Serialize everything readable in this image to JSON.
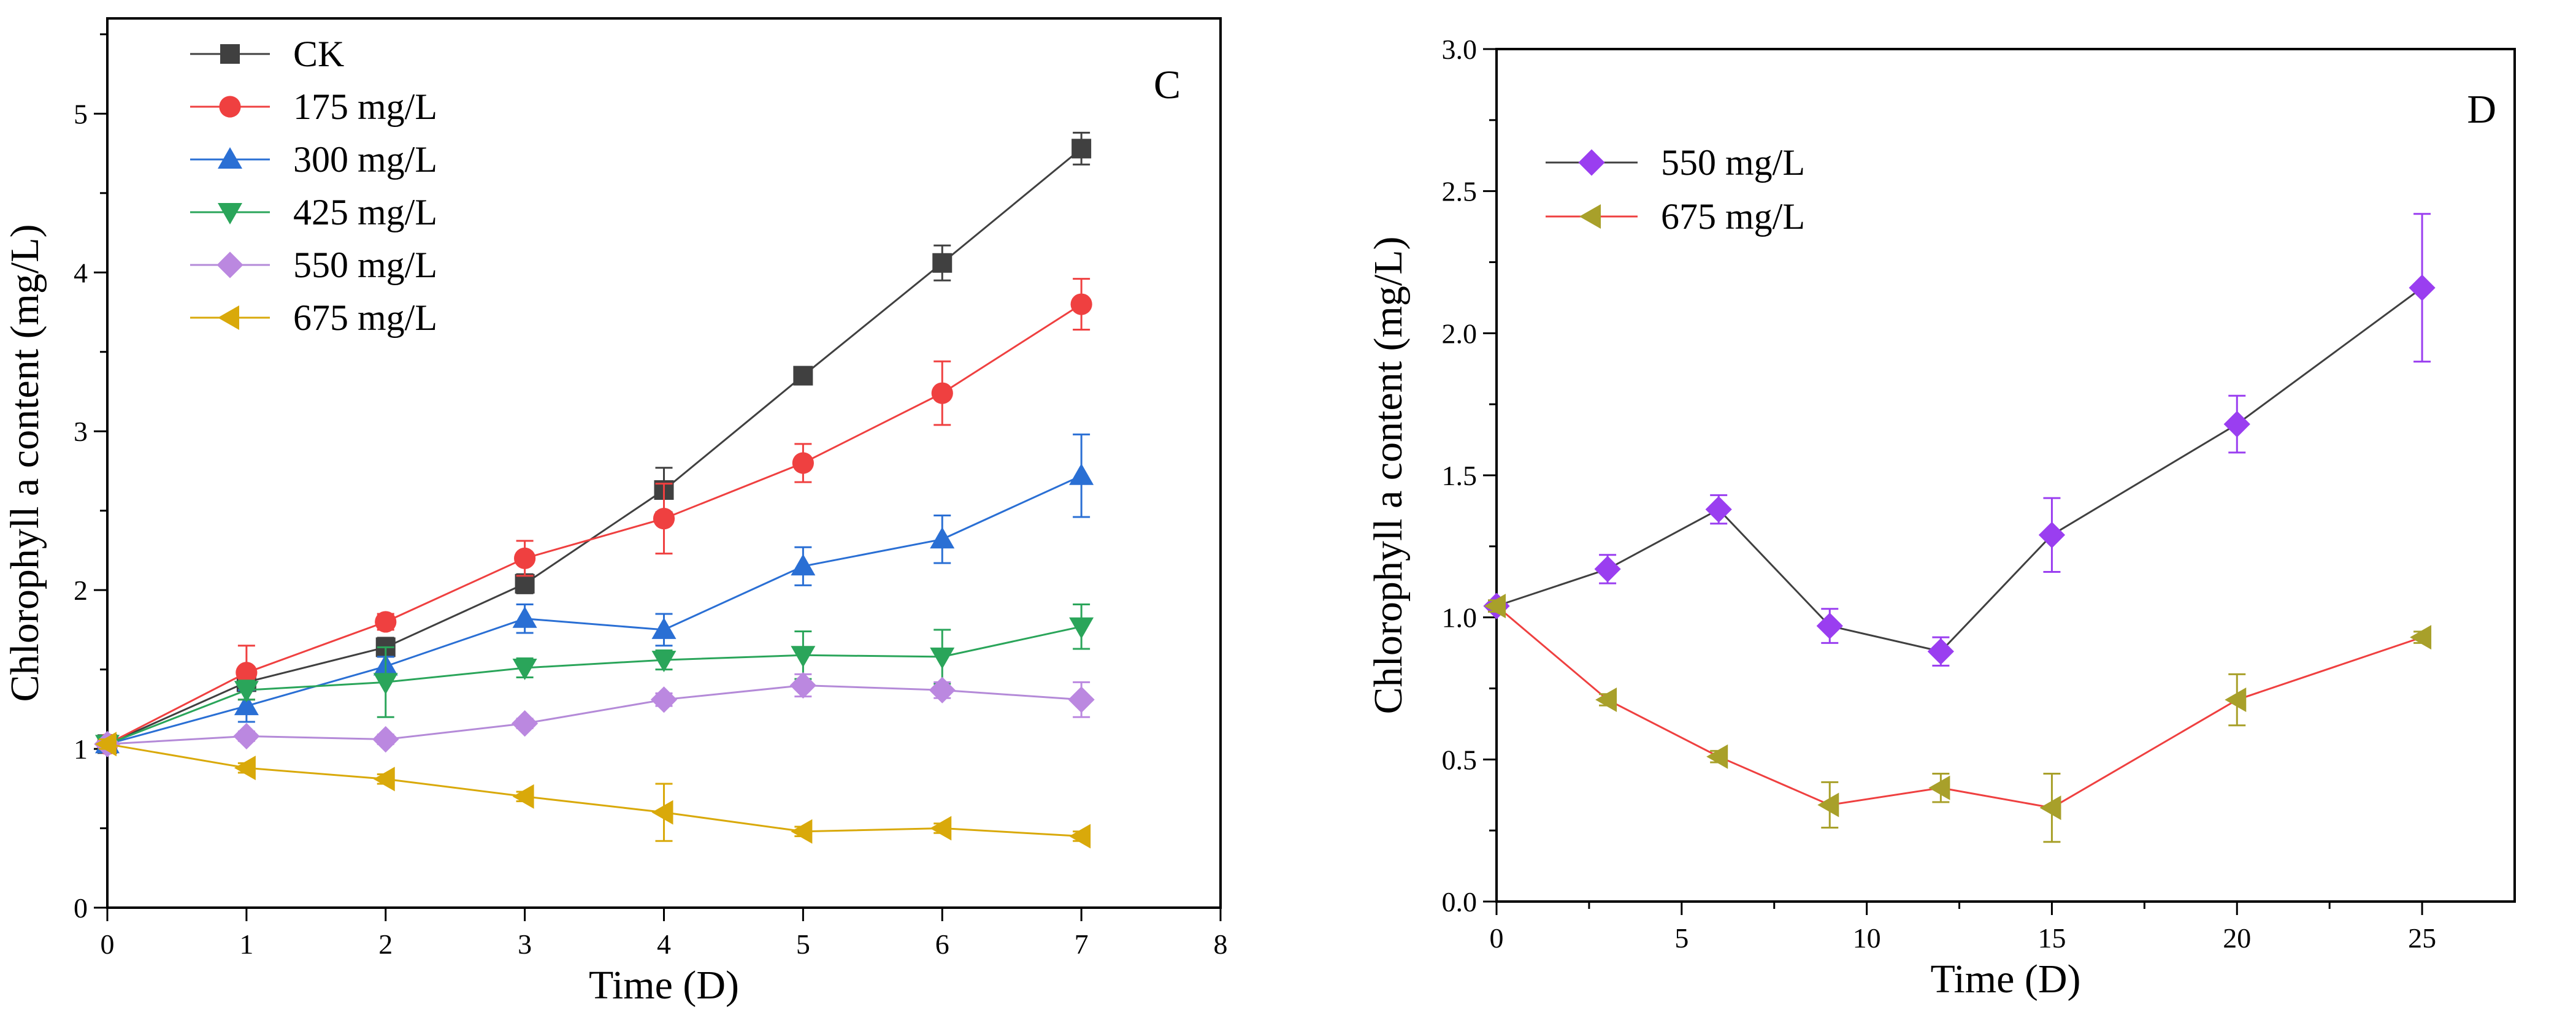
{
  "chart_data": [
    {
      "type": "line",
      "panel_label": "C",
      "xlabel": "Time (D)",
      "ylabel": "Chlorophyll a content (mg/L)",
      "xlim": [
        0,
        8
      ],
      "ylim": [
        0,
        5.6
      ],
      "xticks": [
        "0",
        "1",
        "2",
        "3",
        "4",
        "5",
        "6",
        "7",
        "8"
      ],
      "yticks": [
        "0",
        "1",
        "2",
        "3",
        "4",
        "5"
      ],
      "legend_position": "top-left",
      "x": [
        0,
        1,
        2,
        3,
        4,
        5,
        6,
        7
      ],
      "series": [
        {
          "name": "CK",
          "color": "#404040",
          "line_color": "#404040",
          "marker": "square",
          "values": [
            1.03,
            1.42,
            1.64,
            2.04,
            2.63,
            3.35,
            4.06,
            4.78
          ],
          "errors": [
            0.03,
            0.05,
            0.06,
            0.06,
            0.14,
            0.05,
            0.11,
            0.1
          ]
        },
        {
          "name": "175 mg/L",
          "color": "#ef4040",
          "line_color": "#ef4040",
          "marker": "circle",
          "values": [
            1.03,
            1.48,
            1.8,
            2.2,
            2.45,
            2.8,
            3.24,
            3.8
          ],
          "errors": [
            0.03,
            0.17,
            0.05,
            0.11,
            0.22,
            0.12,
            0.2,
            0.16
          ]
        },
        {
          "name": "300 mg/L",
          "color": "#2a6fd4",
          "line_color": "#2a6fd4",
          "marker": "triangle-up",
          "values": [
            1.03,
            1.27,
            1.52,
            1.82,
            1.75,
            2.15,
            2.32,
            2.72
          ],
          "errors": [
            0.03,
            0.1,
            0.06,
            0.09,
            0.1,
            0.12,
            0.15,
            0.26
          ]
        },
        {
          "name": "425 mg/L",
          "color": "#2aa55a",
          "line_color": "#2aa55a",
          "marker": "triangle-down",
          "values": [
            1.03,
            1.37,
            1.42,
            1.51,
            1.56,
            1.59,
            1.58,
            1.77
          ],
          "errors": [
            0.03,
            0.06,
            0.22,
            0.06,
            0.06,
            0.15,
            0.17,
            0.14
          ]
        },
        {
          "name": "550 mg/L",
          "color": "#bb88e0",
          "line_color": "#b48ad8",
          "marker": "diamond",
          "values": [
            1.03,
            1.08,
            1.06,
            1.16,
            1.31,
            1.4,
            1.37,
            1.31
          ],
          "errors": [
            0.03,
            0.03,
            0.03,
            0.03,
            0.04,
            0.07,
            0.05,
            0.11
          ]
        },
        {
          "name": "675 mg/L",
          "color": "#d9a90a",
          "line_color": "#d9a90a",
          "marker": "triangle-left",
          "values": [
            1.03,
            0.88,
            0.81,
            0.7,
            0.6,
            0.48,
            0.5,
            0.45
          ],
          "errors": [
            0.03,
            0.03,
            0.03,
            0.03,
            0.18,
            0.03,
            0.03,
            0.03
          ]
        }
      ]
    },
    {
      "type": "line",
      "panel_label": "D",
      "xlabel": "Time (D)",
      "ylabel": "Chlorophyll a content (mg/L)",
      "xlim": [
        0,
        27.5
      ],
      "ylim": [
        0,
        3.0
      ],
      "xticks": [
        "0",
        "5",
        "10",
        "15",
        "20",
        "25"
      ],
      "yticks": [
        "0.0",
        "0.5",
        "1.0",
        "1.5",
        "2.0",
        "2.5",
        "3.0"
      ],
      "legend_position": "top-left",
      "x": [
        0,
        3,
        6,
        9,
        12,
        15,
        20,
        25
      ],
      "series": [
        {
          "name": "550 mg/L",
          "color": "#9a3ef0",
          "line_color": "#404040",
          "marker": "diamond",
          "values": [
            1.04,
            1.17,
            1.38,
            0.97,
            0.88,
            1.29,
            1.68,
            2.16
          ],
          "errors": [
            0.02,
            0.05,
            0.05,
            0.06,
            0.05,
            0.13,
            0.1,
            0.26
          ]
        },
        {
          "name": "675 mg/L",
          "color": "#a8a02a",
          "line_color": "#ef4040",
          "marker": "triangle-left",
          "values": [
            1.04,
            0.71,
            0.51,
            0.34,
            0.4,
            0.33,
            0.71,
            0.93
          ],
          "errors": [
            0.02,
            0.02,
            0.02,
            0.08,
            0.05,
            0.12,
            0.09,
            0.02
          ]
        }
      ]
    }
  ]
}
